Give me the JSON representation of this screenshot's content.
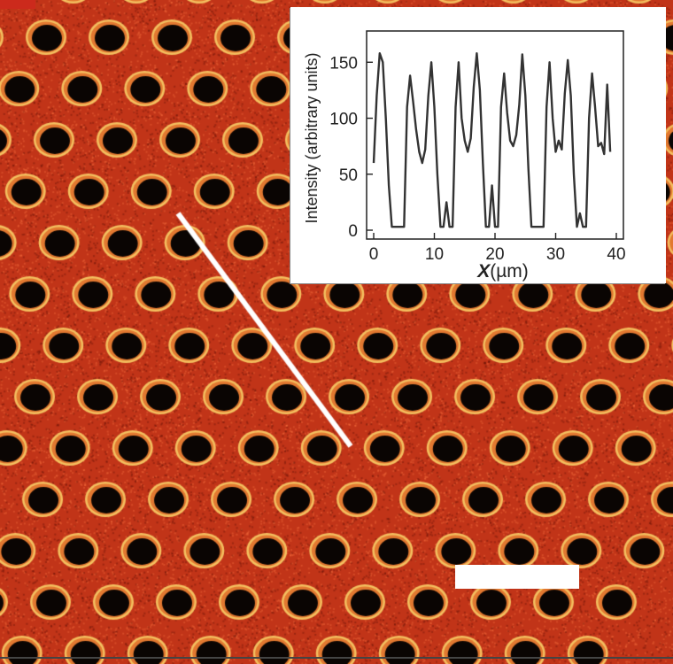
{
  "figure": {
    "colors": {
      "background": "#c13418",
      "hole": "#0a0503",
      "rim": "#f4c060",
      "line_scan": "#ffffff",
      "scale_bar": "#ffffff",
      "panel_badge": "#cc2a1c"
    }
  },
  "chart_data": {
    "type": "line",
    "title": "",
    "xlabel": "X",
    "xlabel_unit": "(µm)",
    "ylabel": "Intensity (arbitrary units)",
    "xlim": [
      0,
      40
    ],
    "ylim": [
      0,
      170
    ],
    "xticks": [
      "0",
      "10",
      "20",
      "30",
      "40"
    ],
    "yticks": [
      "0",
      "50",
      "100",
      "150"
    ],
    "grid": false,
    "series": [
      {
        "color": "#333333",
        "x": [
          0,
          0.5,
          1,
          1.5,
          2,
          2.5,
          3,
          3.5,
          4,
          4.5,
          5,
          5.5,
          6,
          6.5,
          7,
          7.5,
          8,
          8.5,
          9,
          9.5,
          10,
          10.5,
          11,
          11.5,
          12,
          12.5,
          13,
          13.5,
          14,
          14.5,
          15,
          15.5,
          16,
          16.5,
          17,
          17.5,
          18,
          18.5,
          19,
          19.5,
          20,
          20.5,
          21,
          21.5,
          22,
          22.5,
          23,
          23.5,
          24,
          24.5,
          25,
          25.5,
          26,
          26.5,
          27,
          27.5,
          28,
          28.5,
          29,
          29.5,
          30,
          30.5,
          31,
          31.5,
          32,
          32.5,
          33,
          33.5,
          34,
          34.5,
          35,
          35.5,
          36,
          36.5,
          37,
          37.5,
          38,
          38.5,
          39
        ],
        "y": [
          60,
          120,
          158,
          150,
          100,
          40,
          3,
          3,
          3,
          3,
          3,
          110,
          138,
          115,
          90,
          70,
          60,
          72,
          120,
          150,
          110,
          50,
          3,
          3,
          25,
          3,
          3,
          110,
          150,
          100,
          80,
          70,
          82,
          128,
          158,
          125,
          60,
          3,
          3,
          40,
          3,
          3,
          110,
          140,
          105,
          80,
          75,
          85,
          112,
          157,
          120,
          55,
          3,
          3,
          3,
          3,
          3,
          110,
          150,
          100,
          70,
          80,
          72,
          122,
          152,
          120,
          50,
          3,
          15,
          3,
          3,
          100,
          140,
          110,
          75,
          78,
          68,
          130,
          70
        ]
      }
    ]
  }
}
